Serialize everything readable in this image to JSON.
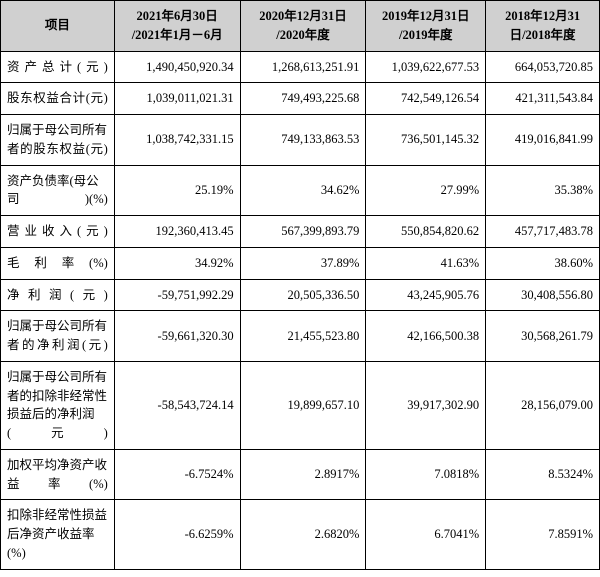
{
  "table": {
    "type": "table",
    "border_color": "#000000",
    "header_bg": "#d0d0d0",
    "body_bg": "#ffffff",
    "font_family": "SimSun",
    "font_size_pt": 9,
    "columns": [
      {
        "label_line1": "项目",
        "label_line2": "",
        "width_pct": 19,
        "align": "left"
      },
      {
        "label_line1": "2021年6月30日",
        "label_line2": "/2021年1月－6月",
        "width_pct": 21,
        "align": "right"
      },
      {
        "label_line1": "2020年12月31日",
        "label_line2": "/2020年度",
        "width_pct": 21,
        "align": "right"
      },
      {
        "label_line1": "2019年12月31日",
        "label_line2": "/2019年度",
        "width_pct": 20,
        "align": "right"
      },
      {
        "label_line1": "2018年12月31",
        "label_line2": "日/2018年度",
        "width_pct": 19,
        "align": "right"
      }
    ],
    "rows": [
      {
        "label": "资产总计(元)",
        "v": [
          "1,490,450,920.34",
          "1,268,613,251.91",
          "1,039,622,677.53",
          "664,053,720.85"
        ]
      },
      {
        "label": "股东权益合计(元)",
        "v": [
          "1,039,011,021.31",
          "749,493,225.68",
          "742,549,126.54",
          "421,311,543.84"
        ]
      },
      {
        "label": "归属于母公司所有者的股东权益(元)",
        "v": [
          "1,038,742,331.15",
          "749,133,863.53",
          "736,501,145.32",
          "419,016,841.99"
        ]
      },
      {
        "label": "资产负债率(母公司)(%)",
        "v": [
          "25.19%",
          "34.62%",
          "27.99%",
          "35.38%"
        ]
      },
      {
        "label": "营业收入(元)",
        "v": [
          "192,360,413.45",
          "567,399,893.79",
          "550,854,820.62",
          "457,717,483.78"
        ]
      },
      {
        "label": "毛利率(%)",
        "v": [
          "34.92%",
          "37.89%",
          "41.63%",
          "38.60%"
        ]
      },
      {
        "label": "净利润(元)",
        "v": [
          "-59,751,992.29",
          "20,505,336.50",
          "43,245,905.76",
          "30,408,556.80"
        ]
      },
      {
        "label": "归属于母公司所有者的净利润(元)",
        "v": [
          "-59,661,320.30",
          "21,455,523.80",
          "42,166,500.38",
          "30,568,261.79"
        ]
      },
      {
        "label": "归属于母公司所有者的扣除非经常性损益后的净利润(元)",
        "v": [
          "-58,543,724.14",
          "19,899,657.10",
          "39,917,302.90",
          "28,156,079.00"
        ]
      },
      {
        "label": "加权平均净资产收益率(%)",
        "v": [
          "-6.7524%",
          "2.8917%",
          "7.0818%",
          "8.5324%"
        ]
      },
      {
        "label": "扣除非经常性损益后净资产收益率(%)",
        "v": [
          "-6.6259%",
          "2.6820%",
          "6.7041%",
          "7.8591%"
        ]
      }
    ]
  }
}
